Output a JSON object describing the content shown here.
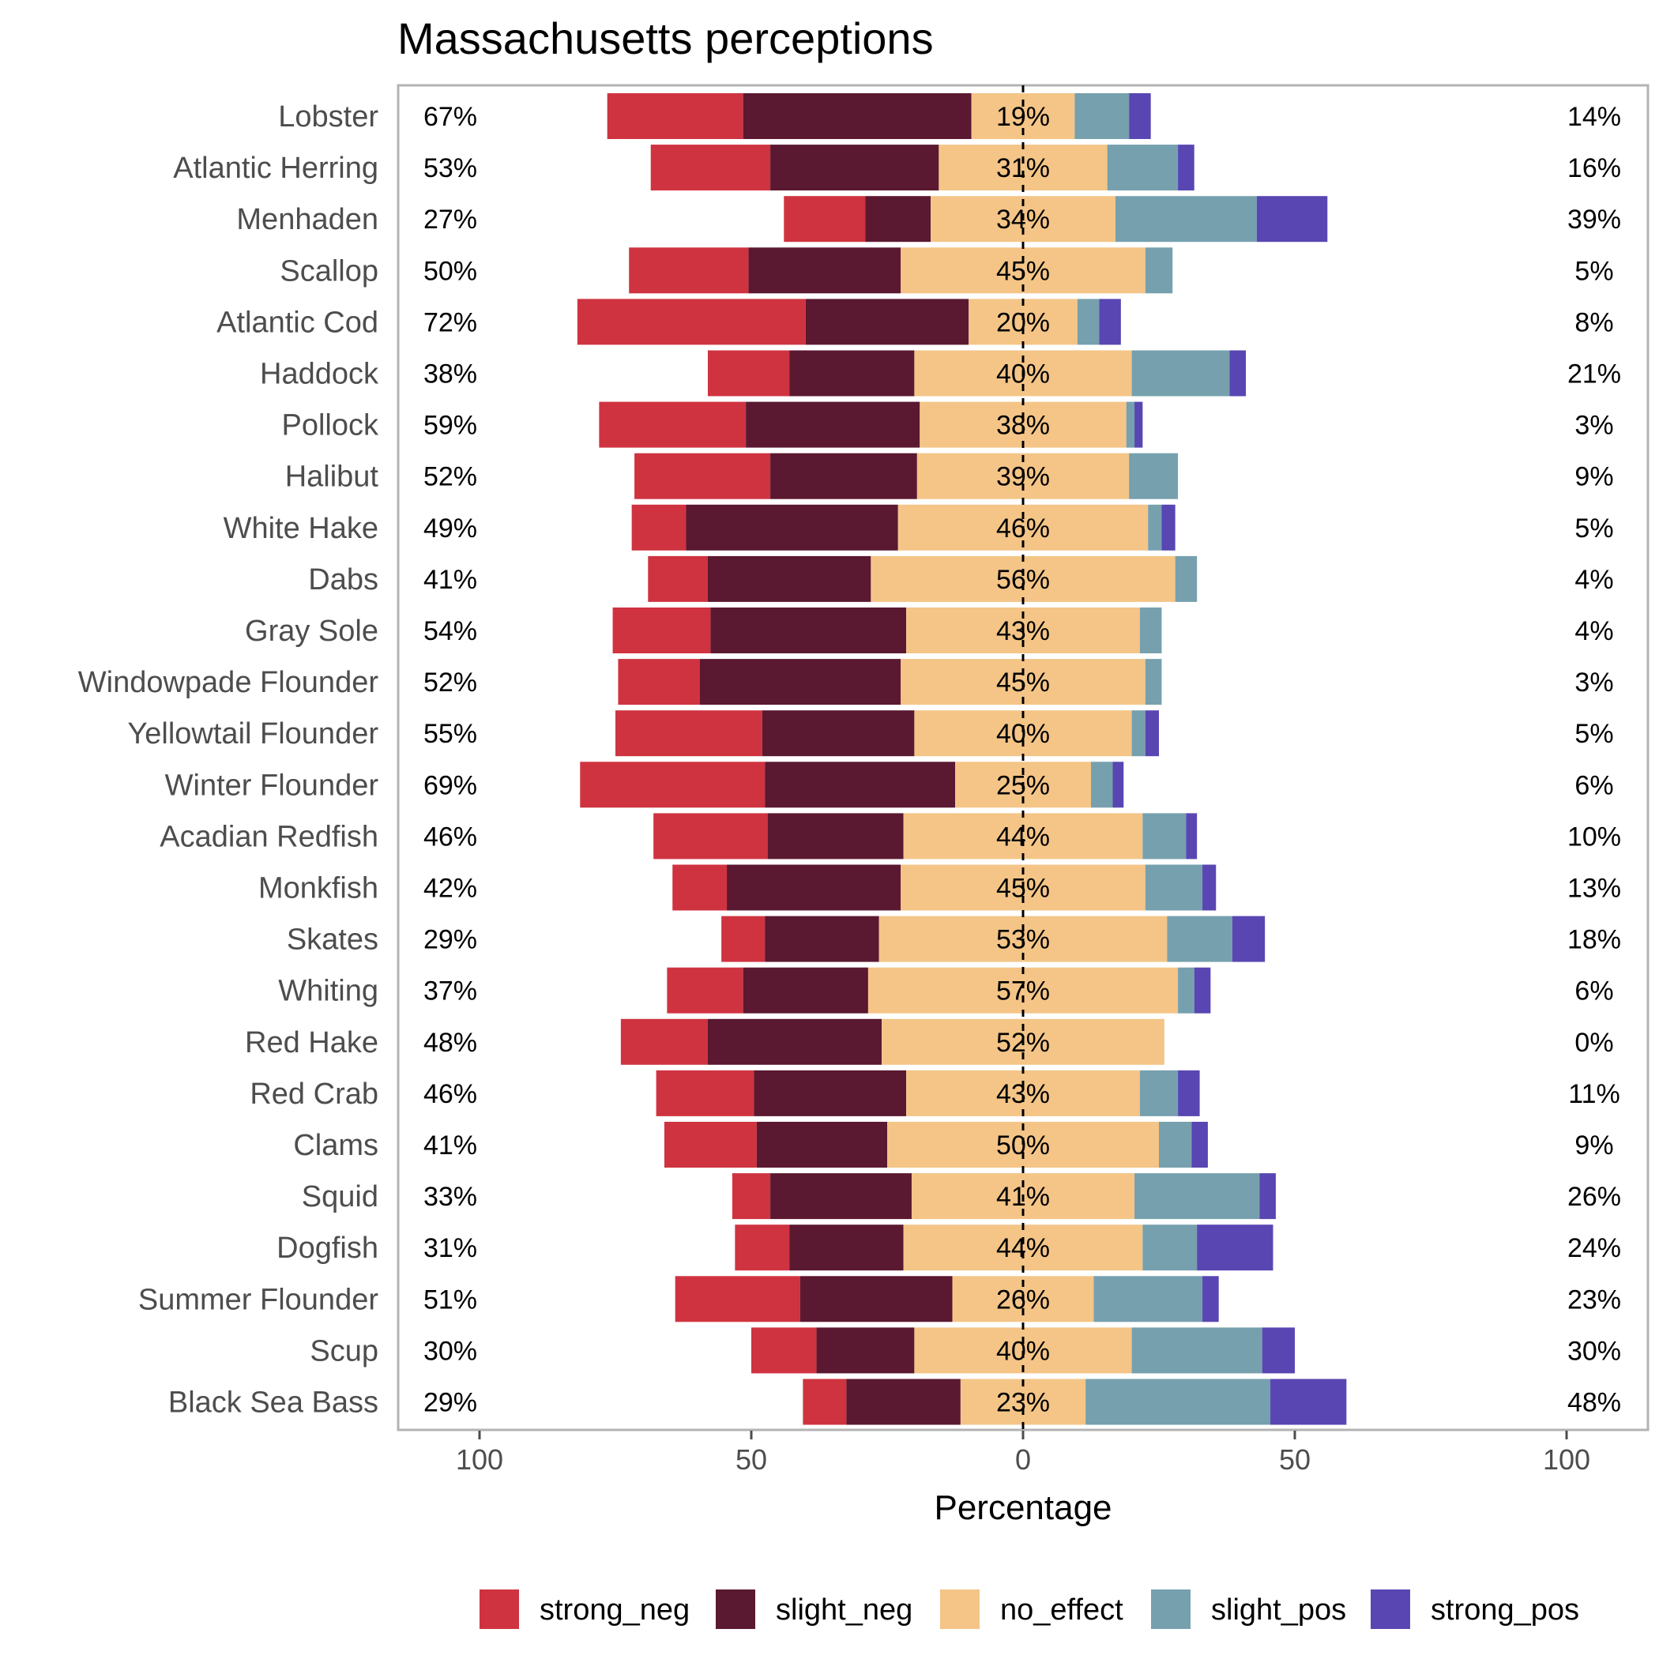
{
  "chart_data": {
    "type": "bar",
    "orientation": "horizontal-diverging",
    "title": "Massachusetts perceptions",
    "xlabel": "Percentage",
    "ylabel": "",
    "xlim": [
      -100,
      100
    ],
    "x_ticks": [
      -100,
      -50,
      0,
      50,
      100
    ],
    "x_tick_labels": [
      "100",
      "50",
      "0",
      "50",
      "100"
    ],
    "grid": false,
    "legend_position": "bottom",
    "segments": [
      {
        "name": "strong_neg",
        "color": "#CF3340"
      },
      {
        "name": "slight_neg",
        "color": "#5B1831"
      },
      {
        "name": "no_effect",
        "color": "#F4C587"
      },
      {
        "name": "slight_pos",
        "color": "#76A0AE"
      },
      {
        "name": "strong_pos",
        "color": "#5946B2"
      }
    ],
    "categories": [
      "Lobster",
      "Atlantic Herring",
      "Menhaden",
      "Scallop",
      "Atlantic Cod",
      "Haddock",
      "Pollock",
      "Halibut",
      "White Hake",
      "Dabs",
      "Gray Sole",
      "Windowpade Flounder",
      "Yellowtail Flounder",
      "Winter Flounder",
      "Acadian Redfish",
      "Monkfish",
      "Skates",
      "Whiting",
      "Red Hake",
      "Red Crab",
      "Clams",
      "Squid",
      "Dogfish",
      "Summer Flounder",
      "Scup",
      "Black Sea Bass"
    ],
    "series": [
      {
        "name": "strong_neg",
        "values": [
          25,
          22,
          15,
          22,
          42,
          15,
          27,
          25,
          10,
          11,
          18,
          15,
          27,
          34,
          21,
          10,
          8,
          14,
          16,
          18,
          17,
          7,
          10,
          23,
          12,
          8
        ]
      },
      {
        "name": "slight_neg",
        "values": [
          42,
          31,
          12,
          28,
          30,
          23,
          32,
          27,
          39,
          30,
          36,
          37,
          28,
          35,
          25,
          32,
          21,
          23,
          32,
          28,
          24,
          26,
          21,
          28,
          18,
          21
        ]
      },
      {
        "name": "no_effect",
        "values": [
          19,
          31,
          34,
          45,
          20,
          40,
          38,
          39,
          46,
          56,
          43,
          45,
          40,
          25,
          44,
          45,
          53,
          57,
          52,
          43,
          50,
          41,
          44,
          26,
          40,
          23
        ]
      },
      {
        "name": "slight_pos",
        "values": [
          10,
          13,
          26,
          5,
          4,
          18,
          1.5,
          9,
          2.5,
          4,
          4,
          3,
          2.5,
          4,
          8,
          10.5,
          12,
          3,
          0,
          7,
          6,
          23,
          10,
          20,
          24,
          34
        ]
      },
      {
        "name": "strong_pos",
        "values": [
          4,
          3,
          13,
          0,
          4,
          3,
          1.5,
          0,
          2.5,
          0,
          0,
          0,
          2.5,
          2,
          2,
          2.5,
          6,
          3,
          0,
          4,
          3,
          3,
          14,
          3,
          6,
          14
        ]
      }
    ],
    "left_labels": [
      "67%",
      "53%",
      "27%",
      "50%",
      "72%",
      "38%",
      "59%",
      "52%",
      "49%",
      "41%",
      "54%",
      "52%",
      "55%",
      "69%",
      "46%",
      "42%",
      "29%",
      "37%",
      "48%",
      "46%",
      "41%",
      "33%",
      "31%",
      "51%",
      "30%",
      "29%"
    ],
    "center_labels": [
      "19%",
      "31%",
      "34%",
      "45%",
      "20%",
      "40%",
      "38%",
      "39%",
      "46%",
      "56%",
      "43%",
      "45%",
      "40%",
      "25%",
      "44%",
      "45%",
      "53%",
      "57%",
      "52%",
      "43%",
      "50%",
      "41%",
      "44%",
      "26%",
      "40%",
      "23%"
    ],
    "right_labels": [
      "14%",
      "16%",
      "39%",
      "5%",
      "8%",
      "21%",
      "3%",
      "9%",
      "5%",
      "4%",
      "4%",
      "3%",
      "5%",
      "6%",
      "10%",
      "13%",
      "18%",
      "6%",
      "0%",
      "11%",
      "9%",
      "26%",
      "24%",
      "23%",
      "30%",
      "48%"
    ]
  }
}
